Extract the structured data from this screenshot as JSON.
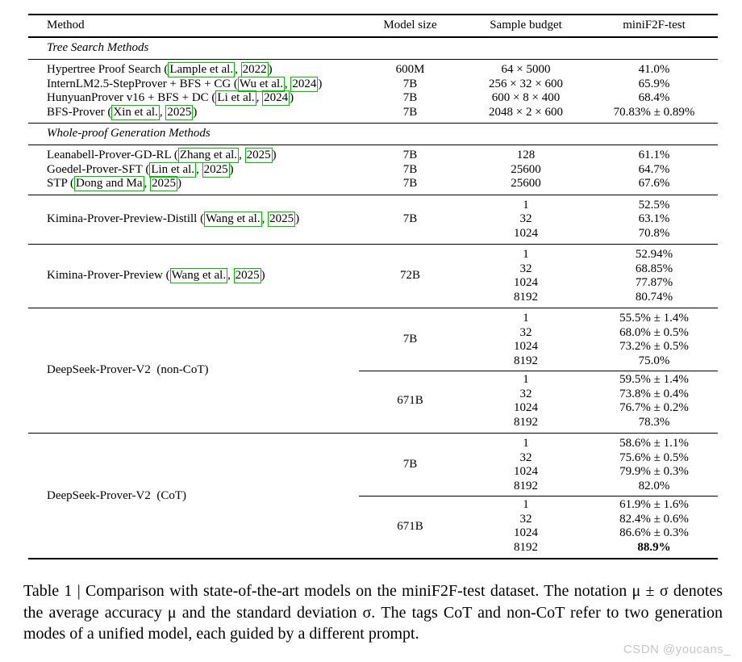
{
  "colors": {
    "citation_box": "#00c000",
    "watermark": "#c6c6c6"
  },
  "page": {
    "caption": "Table 1 | Comparison with state-of-the-art models on the miniF2F-test dataset. The notation μ ± σ denotes the average accuracy μ and the standard deviation σ. The tags CoT and non-CoT refer to two generation modes of a unified model, each guided by a different prompt.",
    "watermark": "CSDN @youcans_"
  },
  "table": {
    "headers": [
      "Method",
      "Model size",
      "Sample budget",
      "miniF2F-test"
    ],
    "sections": [
      {
        "title": "Tree Search Methods",
        "clusters": [
          {
            "groups": [
              {
                "method": [
                  {
                    "t": "Hypertree Proof Search ("
                  },
                  {
                    "t": "Lample et al.",
                    "box": true
                  },
                  {
                    "t": ", "
                  },
                  {
                    "t": "2022",
                    "box": true
                  },
                  {
                    "t": ")"
                  }
                ],
                "blocks": [
                  {
                    "size": "600M",
                    "rows": [
                      {
                        "budget": "64 × 5000",
                        "score": "41.0%"
                      }
                    ]
                  }
                ]
              },
              {
                "method": [
                  {
                    "t": "InternLM2.5-StepProver + BFS + CG ("
                  },
                  {
                    "t": "Wu et al.",
                    "box": true
                  },
                  {
                    "t": ", "
                  },
                  {
                    "t": "2024",
                    "box": true
                  },
                  {
                    "t": ")"
                  }
                ],
                "blocks": [
                  {
                    "size": "7B",
                    "rows": [
                      {
                        "budget": "256 × 32 × 600",
                        "score": "65.9%"
                      }
                    ]
                  }
                ]
              },
              {
                "method": [
                  {
                    "t": "HunyuanProver v16 + BFS + DC ("
                  },
                  {
                    "t": "Li et al.",
                    "box": true
                  },
                  {
                    "t": ", "
                  },
                  {
                    "t": "2024",
                    "box": true
                  },
                  {
                    "t": ")"
                  }
                ],
                "blocks": [
                  {
                    "size": "7B",
                    "rows": [
                      {
                        "budget": "600 × 8 × 400",
                        "score": "68.4%"
                      }
                    ]
                  }
                ]
              },
              {
                "method": [
                  {
                    "t": "BFS-Prover ("
                  },
                  {
                    "t": "Xin et al.",
                    "box": true
                  },
                  {
                    "t": ", "
                  },
                  {
                    "t": "2025",
                    "box": true
                  },
                  {
                    "t": ")"
                  }
                ],
                "blocks": [
                  {
                    "size": "7B",
                    "rows": [
                      {
                        "budget": "2048 × 2 × 600",
                        "score": "70.83% ± 0.89%"
                      }
                    ]
                  }
                ]
              }
            ]
          }
        ]
      },
      {
        "title": "Whole-proof Generation Methods",
        "clusters": [
          {
            "groups": [
              {
                "method": [
                  {
                    "t": "Leanabell-Prover-GD-RL ("
                  },
                  {
                    "t": "Zhang et al.",
                    "box": true
                  },
                  {
                    "t": ", "
                  },
                  {
                    "t": "2025",
                    "box": true
                  },
                  {
                    "t": ")"
                  }
                ],
                "blocks": [
                  {
                    "size": "7B",
                    "rows": [
                      {
                        "budget": "128",
                        "score": "61.1%"
                      }
                    ]
                  }
                ]
              },
              {
                "method": [
                  {
                    "t": "Goedel-Prover-SFT ("
                  },
                  {
                    "t": "Lin et al.",
                    "box": true
                  },
                  {
                    "t": ", "
                  },
                  {
                    "t": "2025",
                    "box": true
                  },
                  {
                    "t": ")"
                  }
                ],
                "blocks": [
                  {
                    "size": "7B",
                    "rows": [
                      {
                        "budget": "25600",
                        "score": "64.7%"
                      }
                    ]
                  }
                ]
              },
              {
                "method": [
                  {
                    "t": "STP ("
                  },
                  {
                    "t": "Dong and Ma",
                    "box": true
                  },
                  {
                    "t": ", "
                  },
                  {
                    "t": "2025",
                    "box": true
                  },
                  {
                    "t": ")"
                  }
                ],
                "blocks": [
                  {
                    "size": "7B",
                    "rows": [
                      {
                        "budget": "25600",
                        "score": "67.6%"
                      }
                    ]
                  }
                ]
              }
            ]
          },
          {
            "groups": [
              {
                "method": [
                  {
                    "t": "Kimina-Prover-Preview-Distill ("
                  },
                  {
                    "t": "Wang et al.",
                    "box": true
                  },
                  {
                    "t": ", "
                  },
                  {
                    "t": "2025",
                    "box": true
                  },
                  {
                    "t": ")"
                  }
                ],
                "blocks": [
                  {
                    "size": "7B",
                    "rows": [
                      {
                        "budget": "1",
                        "score": "52.5%"
                      },
                      {
                        "budget": "32",
                        "score": "63.1%"
                      },
                      {
                        "budget": "1024",
                        "score": "70.8%"
                      }
                    ]
                  }
                ]
              }
            ]
          },
          {
            "groups": [
              {
                "method": [
                  {
                    "t": "Kimina-Prover-Preview ("
                  },
                  {
                    "t": "Wang et al.",
                    "box": true
                  },
                  {
                    "t": ", "
                  },
                  {
                    "t": "2025",
                    "box": true
                  },
                  {
                    "t": ")"
                  }
                ],
                "blocks": [
                  {
                    "size": "72B",
                    "rows": [
                      {
                        "budget": "1",
                        "score": "52.94%"
                      },
                      {
                        "budget": "32",
                        "score": "68.85%"
                      },
                      {
                        "budget": "1024",
                        "score": "77.87%"
                      },
                      {
                        "budget": "8192",
                        "score": "80.74%"
                      }
                    ]
                  }
                ]
              }
            ]
          },
          {
            "groups": [
              {
                "method": [
                  {
                    "t": "DeepSeek-Prover-V2 (non-CoT)"
                  }
                ],
                "blocks": [
                  {
                    "size": "7B",
                    "rows": [
                      {
                        "budget": "1",
                        "score": "55.5% ± 1.4%"
                      },
                      {
                        "budget": "32",
                        "score": "68.0% ± 0.5%"
                      },
                      {
                        "budget": "1024",
                        "score": "73.2% ± 0.5%"
                      },
                      {
                        "budget": "8192",
                        "score": "75.0%"
                      }
                    ]
                  },
                  {
                    "size": "671B",
                    "rows": [
                      {
                        "budget": "1",
                        "score": "59.5% ± 1.4%"
                      },
                      {
                        "budget": "32",
                        "score": "73.8% ± 0.4%"
                      },
                      {
                        "budget": "1024",
                        "score": "76.7% ± 0.2%"
                      },
                      {
                        "budget": "8192",
                        "score": "78.3%"
                      }
                    ]
                  }
                ]
              }
            ]
          },
          {
            "groups": [
              {
                "method": [
                  {
                    "t": "DeepSeek-Prover-V2 (CoT)"
                  }
                ],
                "blocks": [
                  {
                    "size": "7B",
                    "rows": [
                      {
                        "budget": "1",
                        "score": "58.6% ± 1.1%"
                      },
                      {
                        "budget": "32",
                        "score": "75.6% ± 0.5%"
                      },
                      {
                        "budget": "1024",
                        "score": "79.9% ± 0.3%"
                      },
                      {
                        "budget": "8192",
                        "score": "82.0%"
                      }
                    ]
                  },
                  {
                    "size": "671B",
                    "rows": [
                      {
                        "budget": "1",
                        "score": "61.9% ± 1.6%"
                      },
                      {
                        "budget": "32",
                        "score": "82.4% ± 0.6%"
                      },
                      {
                        "budget": "1024",
                        "score": "86.6% ± 0.3%"
                      },
                      {
                        "budget": "8192",
                        "score": "88.9%",
                        "bold": true
                      }
                    ]
                  }
                ]
              }
            ]
          }
        ]
      }
    ]
  }
}
